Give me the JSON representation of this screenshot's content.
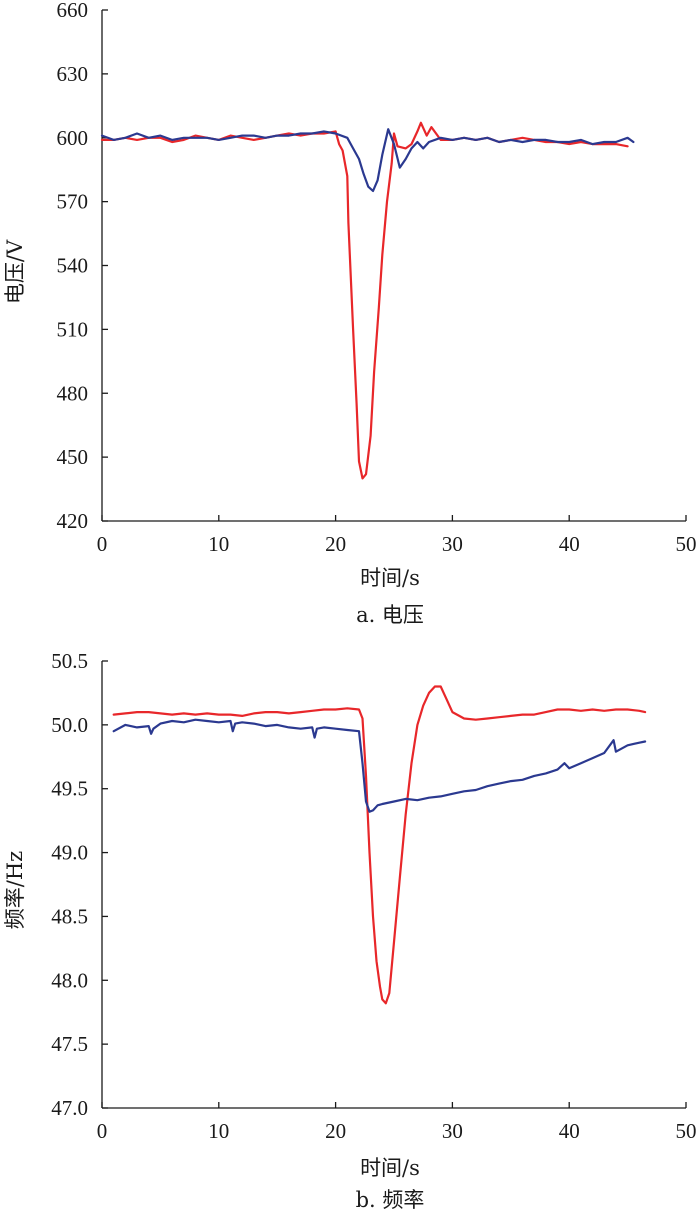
{
  "chart_data": [
    {
      "type": "line",
      "caption": "a. 电压",
      "xlabel": "时间/s",
      "ylabel": "电压/V",
      "xlim": [
        0,
        50
      ],
      "ylim": [
        420,
        660
      ],
      "xticks": [
        0,
        10,
        20,
        30,
        40,
        50
      ],
      "yticks": [
        420,
        450,
        480,
        510,
        540,
        570,
        600,
        630,
        660
      ],
      "grid": false,
      "legend": "none",
      "series": [
        {
          "color": "#e8272a",
          "x": [
            0,
            1,
            2,
            3,
            4,
            5,
            6,
            7,
            8,
            9,
            10,
            11,
            12,
            13,
            14,
            15,
            16,
            17,
            18,
            19,
            20,
            20.3,
            20.6,
            21,
            21.1,
            21.5,
            21.8,
            22,
            22.3,
            22.6,
            23,
            23.3,
            23.7,
            24,
            24.4,
            24.8,
            25,
            25.3,
            26,
            26.5,
            27,
            27.3,
            27.8,
            28.2,
            29,
            30,
            31,
            32,
            33,
            34,
            35,
            36,
            37,
            38,
            39,
            40,
            41,
            42,
            43,
            44,
            45
          ],
          "y": [
            599,
            599,
            600,
            599,
            600,
            600,
            598,
            599,
            601,
            600,
            599,
            601,
            600,
            599,
            600,
            601,
            602,
            601,
            602,
            602,
            603,
            597,
            594,
            582,
            560,
            510,
            475,
            448,
            440,
            442,
            460,
            490,
            520,
            545,
            570,
            588,
            602,
            596,
            595,
            597,
            603,
            607,
            601,
            605,
            599,
            599,
            600,
            599,
            600,
            598,
            599,
            600,
            599,
            598,
            598,
            597,
            598,
            597,
            597,
            597,
            596
          ]
        },
        {
          "color": "#2b3990",
          "x": [
            0,
            1,
            2,
            3,
            4,
            5,
            6,
            7,
            8,
            9,
            10,
            11,
            12,
            13,
            14,
            15,
            16,
            17,
            18,
            19,
            20,
            21,
            21.5,
            22,
            22.4,
            22.8,
            23.2,
            23.6,
            24,
            24.5,
            25,
            25.5,
            26,
            26.5,
            27,
            27.5,
            28,
            29,
            30,
            31,
            32,
            33,
            34,
            35,
            36,
            37,
            38,
            39,
            40,
            41,
            42,
            43,
            44,
            45,
            45.5
          ],
          "y": [
            601,
            599,
            600,
            602,
            600,
            601,
            599,
            600,
            600,
            600,
            599,
            600,
            601,
            601,
            600,
            601,
            601,
            602,
            602,
            603,
            602,
            600,
            595,
            590,
            583,
            577,
            575,
            580,
            592,
            604,
            597,
            586,
            590,
            595,
            598,
            595,
            598,
            600,
            599,
            600,
            599,
            600,
            598,
            599,
            598,
            599,
            599,
            598,
            598,
            599,
            597,
            598,
            598,
            600,
            598
          ]
        }
      ]
    },
    {
      "type": "line",
      "caption": "b. 频率",
      "xlabel": "时间/s",
      "ylabel": "频率/Hz",
      "xlim": [
        0,
        50
      ],
      "ylim": [
        47.0,
        50.5
      ],
      "xticks": [
        0,
        10,
        20,
        30,
        40,
        50
      ],
      "yticks": [
        "47.0",
        "47.5",
        "48.0",
        "48.5",
        "49.0",
        "49.5",
        "50.0",
        "50.5"
      ],
      "grid": false,
      "legend": "none",
      "series": [
        {
          "color": "#e8272a",
          "x": [
            1,
            2,
            3,
            4,
            5,
            6,
            7,
            8,
            9,
            10,
            11,
            12,
            13,
            14,
            15,
            16,
            17,
            18,
            19,
            20,
            21,
            22,
            22.3,
            22.6,
            22.9,
            23.2,
            23.5,
            23.8,
            24,
            24.3,
            24.6,
            25,
            25.5,
            26,
            26.5,
            27,
            27.5,
            28,
            28.5,
            29,
            29.5,
            30,
            31,
            32,
            33,
            34,
            35,
            36,
            37,
            38,
            39,
            40,
            41,
            42,
            43,
            44,
            45,
            46,
            46.5
          ],
          "y": [
            50.08,
            50.09,
            50.1,
            50.1,
            50.09,
            50.08,
            50.09,
            50.08,
            50.09,
            50.08,
            50.08,
            50.07,
            50.09,
            50.1,
            50.1,
            50.09,
            50.1,
            50.11,
            50.12,
            50.12,
            50.13,
            50.12,
            50.05,
            49.6,
            49.0,
            48.5,
            48.15,
            47.95,
            47.85,
            47.82,
            47.9,
            48.3,
            48.8,
            49.3,
            49.7,
            50.0,
            50.15,
            50.25,
            50.3,
            50.3,
            50.2,
            50.1,
            50.05,
            50.04,
            50.05,
            50.06,
            50.07,
            50.08,
            50.08,
            50.1,
            50.12,
            50.12,
            50.11,
            50.12,
            50.11,
            50.12,
            50.12,
            50.11,
            50.1
          ]
        },
        {
          "color": "#2b3990",
          "x": [
            1,
            2,
            3,
            4,
            4.2,
            4.4,
            5,
            6,
            7,
            8,
            9,
            10,
            11,
            11.2,
            11.4,
            12,
            13,
            14,
            15,
            16,
            17,
            18,
            18.2,
            18.4,
            19,
            20,
            21,
            22,
            22.3,
            22.6,
            22.9,
            23.2,
            23.6,
            24,
            25,
            26,
            27,
            28,
            29,
            30,
            31,
            32,
            33,
            34,
            35,
            36,
            37,
            38,
            39,
            39.6,
            40,
            41,
            42,
            43,
            43.8,
            44,
            45,
            46,
            46.5
          ],
          "y": [
            49.95,
            50.0,
            49.98,
            49.99,
            49.93,
            49.97,
            50.01,
            50.03,
            50.02,
            50.04,
            50.03,
            50.02,
            50.03,
            49.95,
            50.01,
            50.02,
            50.01,
            49.99,
            50.0,
            49.98,
            49.97,
            49.98,
            49.9,
            49.97,
            49.98,
            49.97,
            49.96,
            49.95,
            49.7,
            49.4,
            49.32,
            49.33,
            49.37,
            49.38,
            49.4,
            49.42,
            49.41,
            49.43,
            49.44,
            49.46,
            49.48,
            49.49,
            49.52,
            49.54,
            49.56,
            49.57,
            49.6,
            49.62,
            49.65,
            49.7,
            49.66,
            49.7,
            49.74,
            49.78,
            49.88,
            49.79,
            49.84,
            49.86,
            49.87
          ]
        }
      ]
    }
  ]
}
